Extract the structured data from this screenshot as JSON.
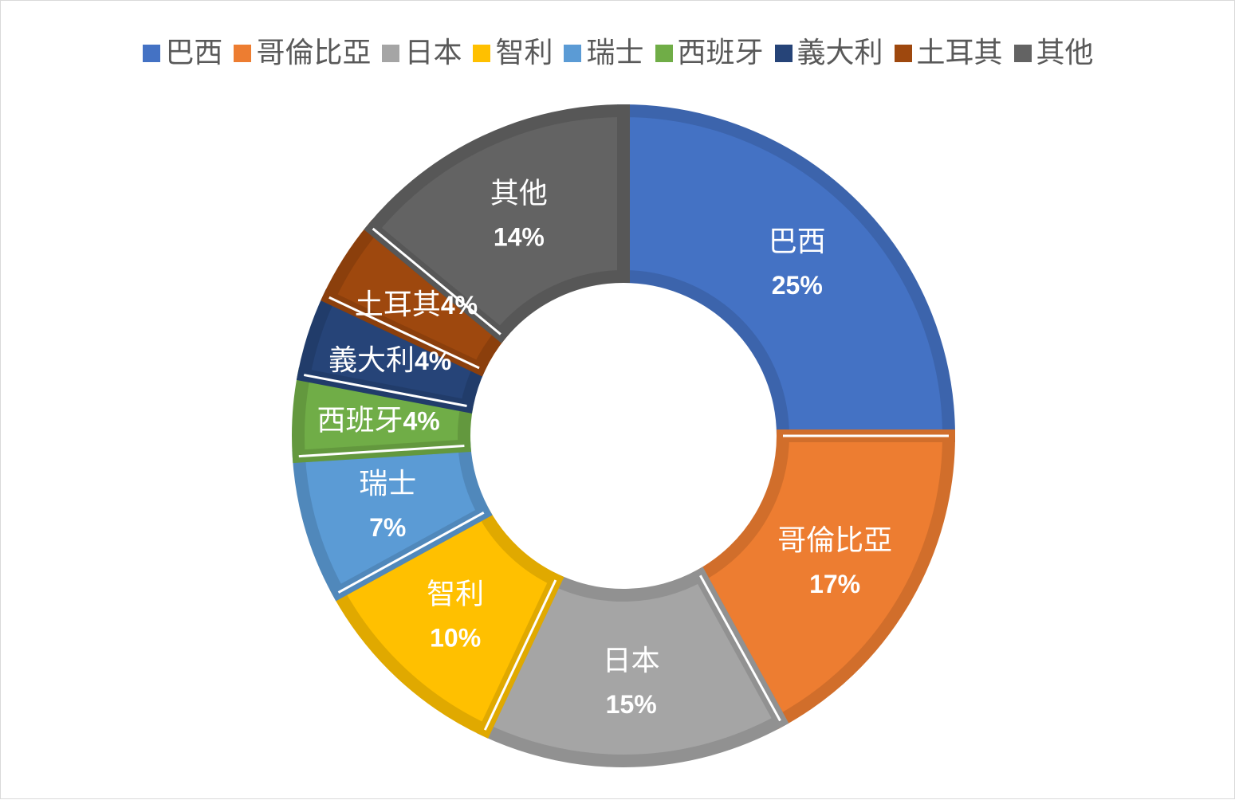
{
  "chart_data": {
    "type": "pie",
    "variant": "donut",
    "title": "",
    "legend_position": "top",
    "series": [
      {
        "name": "巴西",
        "value": 25,
        "label": "25%",
        "color": "#4472C4"
      },
      {
        "name": "哥倫比亞",
        "value": 17,
        "label": "17%",
        "color": "#ED7D31"
      },
      {
        "name": "日本",
        "value": 15,
        "label": "15%",
        "color": "#A5A5A5"
      },
      {
        "name": "智利",
        "value": 10,
        "label": "10%",
        "color": "#FFC000"
      },
      {
        "name": "瑞士",
        "value": 7,
        "label": "7%",
        "color": "#5B9BD5"
      },
      {
        "name": "西班牙",
        "value": 4,
        "label": "4%",
        "color": "#70AD47"
      },
      {
        "name": "義大利",
        "value": 4,
        "label": "4%",
        "color": "#264478"
      },
      {
        "name": "土耳其",
        "value": 4,
        "label": "4%",
        "color": "#9E480E"
      },
      {
        "name": "其他",
        "value": 14,
        "label": "14%",
        "color": "#636363"
      }
    ]
  }
}
